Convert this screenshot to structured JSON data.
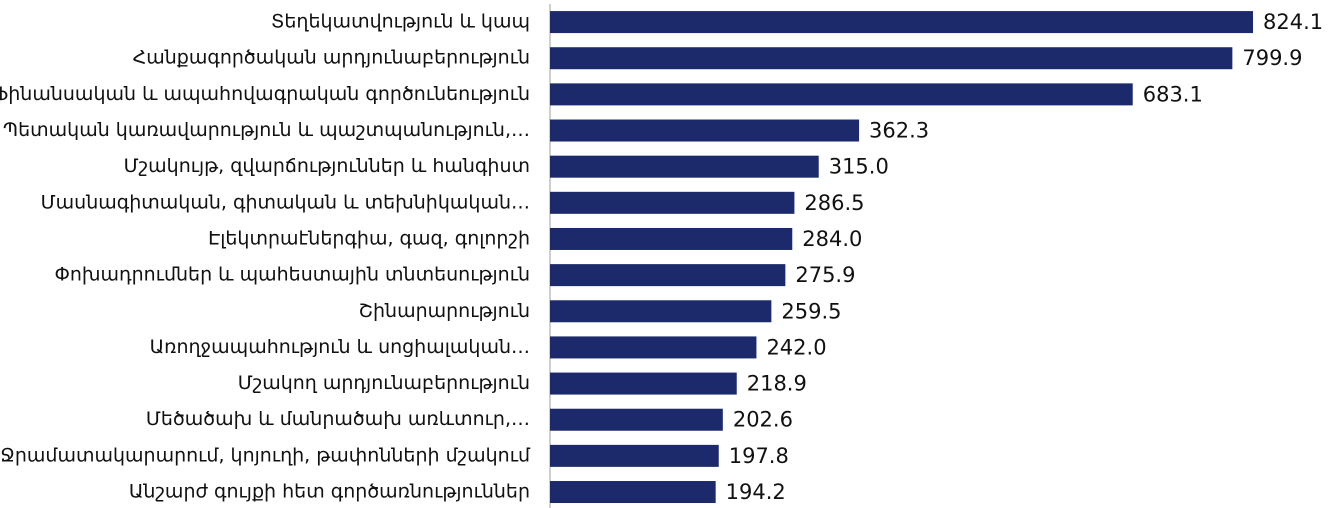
{
  "chart_data": {
    "type": "barh",
    "categories": [
      "Տեղեկատվություն և կապ",
      "Հանքագործական արդյունաբերություն",
      "Ֆինանսական և ապահովագրական գործունեություն",
      "Պետական կառավարություն և պաշտպանություն,…",
      "Մշակույթ, զվարճություններ և հանգիստ",
      "Մասնագիտական, գիտական և տեխնիկական…",
      "Էլեկտրաէներգիա, գազ, գոլորշի",
      "Փոխադրումներ և պահեստային տնտեսություն",
      "Շինարարություն",
      "Առողջապահություն և սոցիալական…",
      "Մշակող արդյունաբերություն",
      "Մեծածախ և մանրածախ առևտուր,…",
      "Ջրամատակարարում, կոյուղի, թափոնների մշակում",
      "Անշարժ գույքի հետ գործառնություններ"
    ],
    "values": [
      824.1,
      799.9,
      683.1,
      362.3,
      315.0,
      286.5,
      284.0,
      275.9,
      259.5,
      242.0,
      218.9,
      202.6,
      197.8,
      194.2
    ],
    "value_labels": [
      "824.1",
      "799.9",
      "683.1",
      "362.3",
      "315.0",
      "286.5",
      "284.0",
      "275.9",
      "259.5",
      "242.0",
      "218.9",
      "202.6",
      "197.8",
      "194.2"
    ],
    "color": "#1c2a6b"
  }
}
